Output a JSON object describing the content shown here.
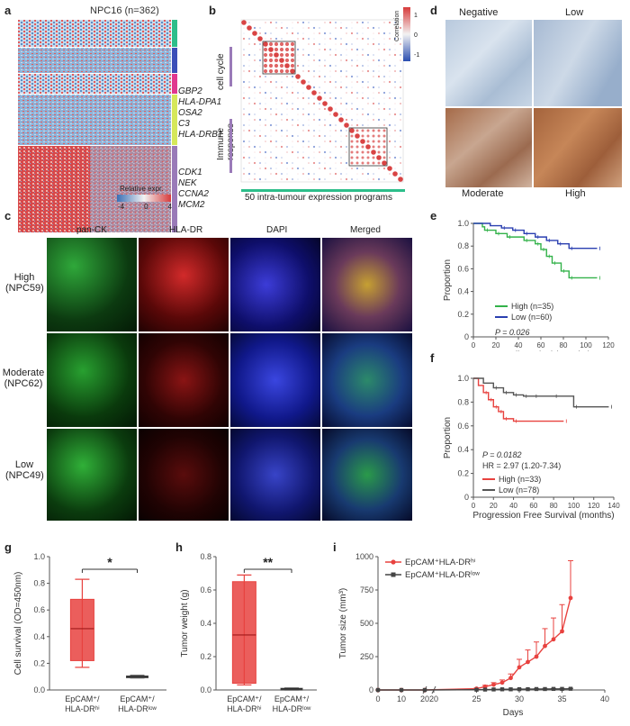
{
  "panels": {
    "a": "a",
    "b": "b",
    "c": "c",
    "d": "d",
    "e": "e",
    "f": "f",
    "g": "g",
    "h": "h",
    "i": "i"
  },
  "panel_a": {
    "title": "NPC16 (n=362)",
    "genes_group1": [
      "GBP2",
      "HLA-DPA1",
      "OSA2",
      "C3",
      "HLA-DRB1"
    ],
    "genes_group2": [
      "CDK1",
      "NEK",
      "CCNA2",
      "MCM2"
    ],
    "legend_title": "Relative expr.",
    "legend_ticks": [
      "-4",
      "0",
      "4"
    ],
    "group_colors": [
      "#2dbe8a",
      "#3b4fb8",
      "#e0388f",
      "#d6e85a",
      "#9a7ab8"
    ]
  },
  "panel_b": {
    "label_cell_cycle": "cell cycle",
    "label_immune": "Immune response",
    "bottom_label": "50 intra-tumour expression programs",
    "colorbar_title": "Correlation",
    "colorbar_ticks": [
      "1",
      "0",
      "-1"
    ]
  },
  "panel_c": {
    "columns": [
      "pan-CK",
      "HLA-DR",
      "DAPI",
      "Merged"
    ],
    "rows": [
      {
        "level": "High",
        "sample": "(NPC59)"
      },
      {
        "level": "Moderate",
        "sample": "(NPC62)"
      },
      {
        "level": "Low",
        "sample": "(NPC49)"
      }
    ]
  },
  "panel_d": {
    "labels": [
      "Negative",
      "Low",
      "Moderate",
      "High"
    ]
  },
  "chart_data": [
    {
      "id": "e",
      "type": "line",
      "xlabel": "Overall survival (months)",
      "ylabel": "Proportion",
      "xlim": [
        0,
        120
      ],
      "ylim": [
        0,
        1.0
      ],
      "xticks": [
        "0",
        "20",
        "40",
        "60",
        "80",
        "100",
        "120"
      ],
      "yticks": [
        "0",
        "0.2",
        "0.4",
        "0.6",
        "0.8",
        "1.0"
      ],
      "annotation": "P = 0.026",
      "series": [
        {
          "name": "High (n=35)",
          "color": "#33b24a",
          "x": [
            0,
            8,
            10,
            20,
            30,
            45,
            55,
            60,
            65,
            70,
            78,
            85,
            110
          ],
          "y": [
            1.0,
            0.97,
            0.94,
            0.91,
            0.88,
            0.85,
            0.82,
            0.77,
            0.71,
            0.65,
            0.58,
            0.52,
            0.52
          ]
        },
        {
          "name": "Low (n=60)",
          "color": "#2a3fb0",
          "x": [
            0,
            15,
            25,
            35,
            45,
            55,
            65,
            75,
            85,
            110
          ],
          "y": [
            1.0,
            0.98,
            0.96,
            0.94,
            0.91,
            0.88,
            0.85,
            0.82,
            0.78,
            0.78
          ]
        }
      ]
    },
    {
      "id": "f",
      "type": "line",
      "xlabel": "Progression Free Survival (months)",
      "ylabel": "Proportion",
      "xlim": [
        0,
        140
      ],
      "ylim": [
        0,
        1.0
      ],
      "xticks": [
        "0",
        "20",
        "40",
        "60",
        "80",
        "100",
        "120",
        "140"
      ],
      "yticks": [
        "0",
        "0.2",
        "0.4",
        "0.6",
        "0.8",
        "1.0"
      ],
      "annotation_p": "P = 0.0182",
      "annotation_hr": "HR = 2.97 (1.20-7.34)",
      "series": [
        {
          "name": "High (n=33)",
          "color": "#e8423f",
          "x": [
            0,
            5,
            10,
            15,
            20,
            25,
            30,
            40,
            90
          ],
          "y": [
            1.0,
            0.94,
            0.88,
            0.82,
            0.76,
            0.72,
            0.66,
            0.64,
            0.64
          ]
        },
        {
          "name": "Low (n=78)",
          "color": "#555555",
          "x": [
            0,
            10,
            20,
            30,
            40,
            50,
            60,
            80,
            100,
            135
          ],
          "y": [
            1.0,
            0.96,
            0.92,
            0.88,
            0.86,
            0.85,
            0.85,
            0.85,
            0.76,
            0.76
          ]
        }
      ]
    },
    {
      "id": "g",
      "type": "box",
      "ylabel": "Cell survival (OD=450nm)",
      "ylim": [
        0,
        1.0
      ],
      "yticks": [
        "0.0",
        "0.2",
        "0.4",
        "0.6",
        "0.8",
        "1.0"
      ],
      "significance": "*",
      "categories": [
        "EpCAM⁺/ HLA-DRʰⁱ",
        "EpCAM⁺/ HLA-DRˡᵒʷ"
      ],
      "boxes": [
        {
          "min": 0.17,
          "q1": 0.22,
          "median": 0.46,
          "q3": 0.68,
          "max": 0.83,
          "color": "#e8423f"
        },
        {
          "min": 0.09,
          "q1": 0.095,
          "median": 0.1,
          "q3": 0.105,
          "max": 0.11,
          "color": "#555555"
        }
      ]
    },
    {
      "id": "h",
      "type": "box",
      "ylabel": "Tumor weight (g)",
      "ylim": [
        0,
        0.8
      ],
      "yticks": [
        "0.0",
        "0.2",
        "0.4",
        "0.6",
        "0.8"
      ],
      "significance": "**",
      "categories": [
        "EpCAM⁺/ HLA-DRʰⁱ",
        "EpCAM⁺/ HLA-DRˡᵒʷ"
      ],
      "boxes": [
        {
          "min": 0.03,
          "q1": 0.04,
          "median": 0.33,
          "q3": 0.65,
          "max": 0.69,
          "color": "#e8423f"
        },
        {
          "min": 0.0,
          "q1": 0.003,
          "median": 0.006,
          "q3": 0.01,
          "max": 0.012,
          "color": "#555555"
        }
      ]
    },
    {
      "id": "i",
      "type": "line",
      "xlabel": "Days",
      "ylabel": "Tumor size (mm³)",
      "ylim": [
        0,
        1000
      ],
      "yticks": [
        "0",
        "250",
        "500",
        "750",
        "1000"
      ],
      "xticks_left": [
        "0",
        "10",
        "20"
      ],
      "xticks_right": [
        "20",
        "25",
        "30",
        "35",
        "40"
      ],
      "series": [
        {
          "name": "EpCAM⁺HLA-DRʰⁱ",
          "color": "#e8423f",
          "x": [
            0,
            10,
            20,
            25,
            26,
            27,
            28,
            29,
            30,
            31,
            32,
            33,
            34,
            35,
            36
          ],
          "y": [
            0,
            0,
            0,
            10,
            25,
            40,
            55,
            90,
            170,
            210,
            250,
            330,
            380,
            440,
            690
          ],
          "err": [
            0,
            0,
            0,
            5,
            10,
            15,
            20,
            30,
            60,
            90,
            110,
            130,
            160,
            200,
            280
          ]
        },
        {
          "name": "EpCAM⁺HLA-DRˡᵒʷ",
          "color": "#444444",
          "x": [
            0,
            10,
            20,
            25,
            26,
            27,
            28,
            29,
            30,
            31,
            32,
            33,
            34,
            35,
            36
          ],
          "y": [
            0,
            0,
            0,
            2,
            3,
            4,
            5,
            5,
            6,
            6,
            7,
            7,
            8,
            8,
            9
          ],
          "err": [
            0,
            0,
            0,
            1,
            1,
            1,
            1,
            2,
            2,
            2,
            2,
            2,
            3,
            3,
            3
          ]
        }
      ]
    }
  ]
}
